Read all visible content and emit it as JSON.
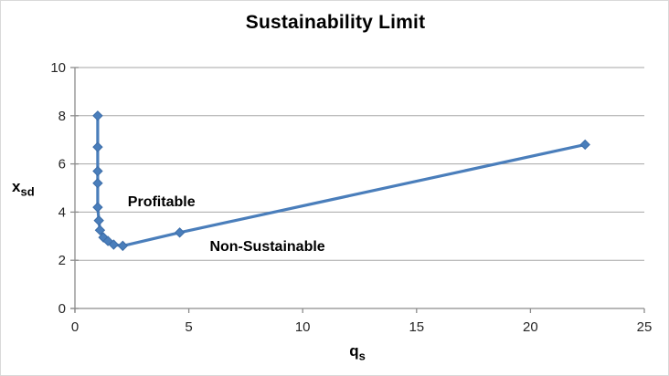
{
  "chart_data": {
    "type": "line",
    "title": "Sustainability Limit",
    "xlabel": "q",
    "xlabel_sub": "s",
    "ylabel": "x",
    "ylabel_sub": "sd",
    "xlim": [
      0,
      25
    ],
    "ylim": [
      0,
      10
    ],
    "xticks": [
      0,
      5,
      10,
      15,
      20,
      25
    ],
    "yticks": [
      0,
      2,
      4,
      6,
      8,
      10
    ],
    "grid": "horizontal",
    "legend": "none",
    "series": [
      {
        "name": "Sustainability Limit",
        "color": "#4a7ebb",
        "marker": "diamond",
        "points": [
          [
            1,
            8.0
          ],
          [
            1,
            6.7
          ],
          [
            1,
            5.7
          ],
          [
            1,
            5.2
          ],
          [
            1,
            4.2
          ],
          [
            1.05,
            3.65
          ],
          [
            1.1,
            3.25
          ],
          [
            1.25,
            2.95
          ],
          [
            1.45,
            2.8
          ],
          [
            1.7,
            2.65
          ],
          [
            2.1,
            2.6
          ],
          [
            4.6,
            3.15
          ],
          [
            22.4,
            6.8
          ]
        ]
      }
    ],
    "annotations": [
      {
        "text": "Profitable",
        "x": 3.8,
        "y": 4.45
      },
      {
        "text": "Non-Sustainable",
        "x": 8.45,
        "y": 2.6
      }
    ]
  },
  "colors": {
    "series": "#4a7ebb",
    "marker_edge": "#3c6da8",
    "gridline": "#a6a6a6",
    "axis": "#8c8c8c",
    "tick_text": "#262626",
    "annotation_text": "#000000"
  }
}
